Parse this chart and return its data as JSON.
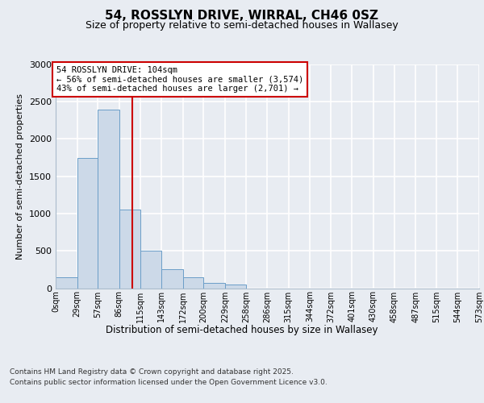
{
  "title_line1": "54, ROSSLYN DRIVE, WIRRAL, CH46 0SZ",
  "title_line2": "Size of property relative to semi-detached houses in Wallasey",
  "xlabel": "Distribution of semi-detached houses by size in Wallasey",
  "ylabel": "Number of semi-detached properties",
  "bin_labels": [
    "0sqm",
    "29sqm",
    "57sqm",
    "86sqm",
    "115sqm",
    "143sqm",
    "172sqm",
    "200sqm",
    "229sqm",
    "258sqm",
    "286sqm",
    "315sqm",
    "344sqm",
    "372sqm",
    "401sqm",
    "430sqm",
    "458sqm",
    "487sqm",
    "515sqm",
    "544sqm",
    "573sqm"
  ],
  "bin_edges": [
    0,
    29,
    57,
    86,
    115,
    143,
    172,
    200,
    229,
    258,
    286,
    315,
    344,
    372,
    401,
    430,
    458,
    487,
    515,
    544,
    573
  ],
  "bar_heights": [
    150,
    1750,
    2390,
    1050,
    500,
    250,
    150,
    75,
    50,
    0,
    0,
    0,
    0,
    0,
    0,
    0,
    0,
    0,
    0,
    0
  ],
  "bar_color": "#ccd9e8",
  "bar_edge_color": "#6b9ec8",
  "red_line_x": 104,
  "ylim": [
    0,
    3000
  ],
  "yticks": [
    0,
    500,
    1000,
    1500,
    2000,
    2500,
    3000
  ],
  "annotation_text_line1": "54 ROSSLYN DRIVE: 104sqm",
  "annotation_text_line2": "← 56% of semi-detached houses are smaller (3,574)",
  "annotation_text_line3": "43% of semi-detached houses are larger (2,701) →",
  "annotation_box_facecolor": "#ffffff",
  "annotation_box_edgecolor": "#cc0000",
  "footer_line1": "Contains HM Land Registry data © Crown copyright and database right 2025.",
  "footer_line2": "Contains public sector information licensed under the Open Government Licence v3.0.",
  "fig_facecolor": "#e8ecf2",
  "plot_facecolor": "#e8ecf2",
  "grid_color": "#ffffff",
  "spine_color": "#aabbcc"
}
